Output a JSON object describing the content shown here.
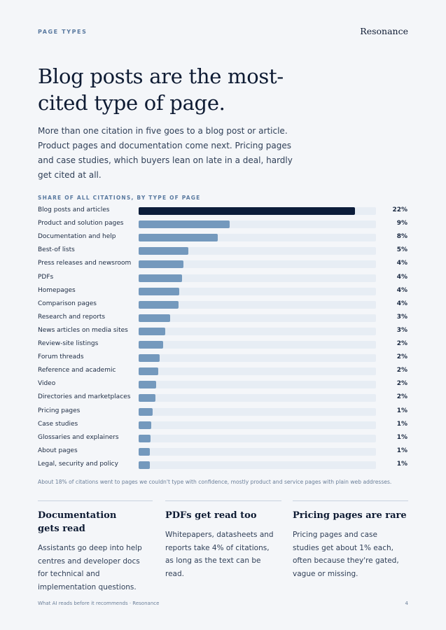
{
  "header": {
    "eyebrow": "PAGE TYPES",
    "brand": "Resonance"
  },
  "headline": "Blog posts are the most-cited type of page.",
  "lede": "More than one citation in five goes to a blog post or article. Product pages and documentation come next. Pricing pages and case studies, which buyers lean on late in a deal, hardly get cited at all.",
  "chart_data": {
    "type": "bar",
    "orientation": "horizontal",
    "title": "SHARE OF ALL CITATIONS, BY TYPE OF PAGE",
    "categories": [
      "Blog posts and articles",
      "Product and solution pages",
      "Documentation and help",
      "Best-of lists",
      "Press releases and newsroom",
      "PDFs",
      "Homepages",
      "Comparison pages",
      "Research and reports",
      "News articles on media sites",
      "Review-site listings",
      "Forum threads",
      "Reference and academic",
      "Video",
      "Directories and marketplaces",
      "Pricing pages",
      "Case studies",
      "Glossaries and explainers",
      "About pages",
      "Legal, security and policy"
    ],
    "values": [
      21.9,
      9.2,
      8.0,
      5.0,
      4.5,
      4.4,
      4.1,
      4.0,
      3.2,
      2.7,
      2.5,
      2.1,
      2.0,
      1.8,
      1.7,
      1.4,
      1.3,
      1.2,
      1.1,
      1.1
    ],
    "value_labels": [
      "22%",
      "9%",
      "8%",
      "5%",
      "4%",
      "4%",
      "4%",
      "4%",
      "3%",
      "3%",
      "2%",
      "2%",
      "2%",
      "2%",
      "2%",
      "1%",
      "1%",
      "1%",
      "1%",
      "1%"
    ],
    "xlim": [
      0,
      24
    ],
    "grid": false,
    "colors": {
      "highlight": "#0c1d3a",
      "bar": "#7499bd",
      "track": "#e7edf4"
    }
  },
  "footnote": "About 18% of citations went to pages we couldn't type with confidence, mostly product and service pages with plain web addresses.",
  "columns": [
    {
      "title": "Documentation gets read",
      "body": "Assistants go deep into help centres and developer docs for technical and implementation questions."
    },
    {
      "title": "PDFs get read too",
      "body": "Whitepapers, datasheets and reports take 4% of citations, as long as the text can be read."
    },
    {
      "title": "Pricing pages are rare",
      "body": "Pricing pages and case studies get about 1% each, often because they're gated, vague or missing."
    }
  ],
  "footer": {
    "left": "What AI reads before it recommends · Resonance",
    "page_number": "4"
  }
}
